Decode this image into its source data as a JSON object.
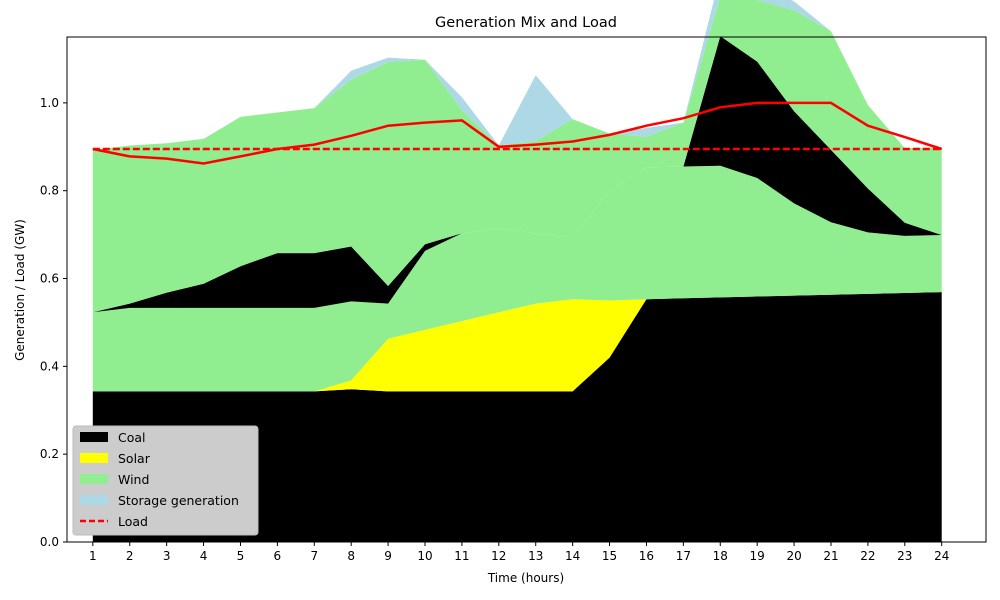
{
  "chart_data": {
    "type": "area",
    "title": "Generation Mix and Load",
    "xlabel": "Time (hours)",
    "ylabel": "Generation / Load (GW)",
    "x": [
      1,
      2,
      3,
      4,
      5,
      6,
      7,
      8,
      9,
      10,
      11,
      12,
      13,
      14,
      15,
      16,
      17,
      18,
      19,
      20,
      21,
      22,
      23,
      24
    ],
    "xlim": [
      0.3,
      25.2
    ],
    "ylim": [
      0,
      1.15
    ],
    "yticks": [
      0.0,
      0.2,
      0.4,
      0.6,
      0.8,
      1.0
    ],
    "ytick_labels": [
      "0.0",
      "0.2",
      "0.4",
      "0.6",
      "0.8",
      "1.0"
    ],
    "grid": false,
    "legend_position": "lower-left",
    "series": [
      {
        "name": "Coal",
        "color": "#000000",
        "values": [
          0.343,
          0.343,
          0.343,
          0.343,
          0.343,
          0.343,
          0.343,
          0.348,
          0.343,
          0.343,
          0.343,
          0.343,
          0.343,
          0.343,
          0.42,
          0.553,
          0.555,
          0.557,
          0.559,
          0.561,
          0.563,
          0.565,
          0.567,
          0.569
        ]
      },
      {
        "name": "Solar",
        "color": "#ffff00",
        "values": [
          0,
          0,
          0,
          0,
          0,
          0,
          0,
          0.02,
          0.12,
          0.14,
          0.16,
          0.18,
          0.2,
          0.21,
          0.13,
          0,
          0,
          0,
          0,
          0,
          0,
          0,
          0,
          0
        ]
      },
      {
        "name": "Wind",
        "color": "#90ee90",
        "values": [
          0.18,
          0.19,
          0.19,
          0.19,
          0.19,
          0.19,
          0.19,
          0.18,
          0.08,
          0.18,
          0.2,
          0.19,
          0.16,
          0.14,
          0.25,
          0.3,
          0.3,
          0.3,
          0.27,
          0.21,
          0.165,
          0.14,
          0.13,
          0.13
        ]
      },
      {
        "name": "Storage generation",
        "color": "#add8e6",
        "values": [
          0,
          0,
          0,
          0,
          0,
          0,
          0,
          0,
          0,
          0,
          0,
          0,
          0,
          0,
          0,
          0,
          0,
          0,
          0,
          0,
          0,
          0,
          0,
          0
        ]
      }
    ],
    "stack_overlays": [
      {
        "name": "Coal",
        "color": "#000000",
        "values": [
          0,
          0.01,
          0.035,
          0.055,
          0.095,
          0.125,
          0.125,
          0.125,
          0.04,
          0.015,
          0,
          0,
          0,
          0,
          0,
          0,
          0,
          0.295,
          0.265,
          0.21,
          0.165,
          0.1,
          0.03,
          0
        ]
      },
      {
        "name": "Wind",
        "color": "#90ee90",
        "values": [
          0.37,
          0.36,
          0.34,
          0.33,
          0.34,
          0.32,
          0.33,
          0.38,
          0.51,
          0.42,
          0.28,
          0.19,
          0.21,
          0.27,
          0.13,
          0.07,
          0.1,
          0.09,
          0.14,
          0.23,
          0.27,
          0.19,
          0.17,
          0.2
        ]
      },
      {
        "name": "Storage generation",
        "color": "#add8e6",
        "values": [
          0,
          0,
          0,
          0,
          0,
          0,
          0,
          0.02,
          0.01,
          0.0,
          0.03,
          0.0,
          0.15,
          0.0,
          0.0,
          0.02,
          0.0,
          0.05,
          0.04,
          0.02,
          0.0,
          0.0,
          0.0,
          0.0
        ]
      }
    ],
    "load": {
      "name": "Load",
      "color": "#ff0000",
      "values": [
        0.895,
        0.878,
        0.873,
        0.862,
        0.878,
        0.895,
        0.905,
        0.925,
        0.948,
        0.955,
        0.96,
        0.9,
        0.905,
        0.912,
        0.927,
        0.948,
        0.965,
        0.99,
        1.0,
        1.0,
        1.0,
        0.948,
        0.922,
        0.895
      ]
    },
    "load_baseline": 0.895
  }
}
